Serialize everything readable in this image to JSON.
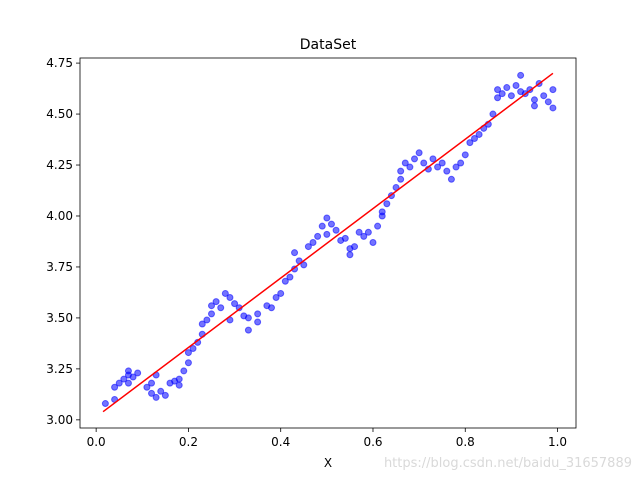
{
  "chart_data": {
    "type": "scatter",
    "title": "DataSet",
    "xlabel": "X",
    "ylabel": "",
    "xlim": [
      -0.035,
      1.04
    ],
    "ylim": [
      2.96,
      4.775
    ],
    "xticks": [
      0.0,
      0.2,
      0.4,
      0.6,
      0.8,
      1.0
    ],
    "xtick_labels": [
      "0.0",
      "0.2",
      "0.4",
      "0.6",
      "0.8",
      "1.0"
    ],
    "yticks": [
      3.0,
      3.25,
      3.5,
      3.75,
      4.0,
      4.25,
      4.5,
      4.75
    ],
    "ytick_labels": [
      "3.00",
      "3.25",
      "3.50",
      "3.75",
      "4.00",
      "4.25",
      "4.50",
      "4.75"
    ],
    "grid": false,
    "legend": "none",
    "series": [
      {
        "kind": "scatter",
        "color": "#0000ff",
        "opacity": 0.55,
        "points": [
          [
            0.02,
            3.08
          ],
          [
            0.04,
            3.16
          ],
          [
            0.04,
            3.1
          ],
          [
            0.05,
            3.18
          ],
          [
            0.06,
            3.2
          ],
          [
            0.07,
            3.22
          ],
          [
            0.07,
            3.18
          ],
          [
            0.08,
            3.21
          ],
          [
            0.09,
            3.23
          ],
          [
            0.07,
            3.24
          ],
          [
            0.11,
            3.16
          ],
          [
            0.12,
            3.13
          ],
          [
            0.12,
            3.18
          ],
          [
            0.13,
            3.22
          ],
          [
            0.13,
            3.11
          ],
          [
            0.14,
            3.14
          ],
          [
            0.15,
            3.12
          ],
          [
            0.16,
            3.18
          ],
          [
            0.17,
            3.19
          ],
          [
            0.18,
            3.17
          ],
          [
            0.18,
            3.2
          ],
          [
            0.19,
            3.24
          ],
          [
            0.2,
            3.28
          ],
          [
            0.2,
            3.33
          ],
          [
            0.21,
            3.35
          ],
          [
            0.22,
            3.38
          ],
          [
            0.23,
            3.42
          ],
          [
            0.23,
            3.47
          ],
          [
            0.24,
            3.49
          ],
          [
            0.25,
            3.52
          ],
          [
            0.25,
            3.56
          ],
          [
            0.26,
            3.58
          ],
          [
            0.27,
            3.55
          ],
          [
            0.28,
            3.62
          ],
          [
            0.29,
            3.6
          ],
          [
            0.29,
            3.49
          ],
          [
            0.3,
            3.57
          ],
          [
            0.31,
            3.55
          ],
          [
            0.32,
            3.51
          ],
          [
            0.33,
            3.44
          ],
          [
            0.33,
            3.5
          ],
          [
            0.35,
            3.52
          ],
          [
            0.35,
            3.48
          ],
          [
            0.37,
            3.56
          ],
          [
            0.38,
            3.55
          ],
          [
            0.39,
            3.6
          ],
          [
            0.4,
            3.62
          ],
          [
            0.41,
            3.68
          ],
          [
            0.42,
            3.7
          ],
          [
            0.43,
            3.74
          ],
          [
            0.43,
            3.82
          ],
          [
            0.44,
            3.78
          ],
          [
            0.45,
            3.76
          ],
          [
            0.46,
            3.85
          ],
          [
            0.47,
            3.87
          ],
          [
            0.48,
            3.9
          ],
          [
            0.49,
            3.95
          ],
          [
            0.5,
            3.99
          ],
          [
            0.5,
            3.91
          ],
          [
            0.51,
            3.96
          ],
          [
            0.52,
            3.93
          ],
          [
            0.53,
            3.88
          ],
          [
            0.54,
            3.89
          ],
          [
            0.55,
            3.84
          ],
          [
            0.55,
            3.81
          ],
          [
            0.56,
            3.85
          ],
          [
            0.57,
            3.92
          ],
          [
            0.58,
            3.9
          ],
          [
            0.59,
            3.92
          ],
          [
            0.6,
            3.87
          ],
          [
            0.61,
            3.95
          ],
          [
            0.62,
            4.0
          ],
          [
            0.62,
            4.02
          ],
          [
            0.63,
            4.06
          ],
          [
            0.64,
            4.1
          ],
          [
            0.65,
            4.14
          ],
          [
            0.66,
            4.18
          ],
          [
            0.66,
            4.22
          ],
          [
            0.67,
            4.26
          ],
          [
            0.68,
            4.24
          ],
          [
            0.69,
            4.28
          ],
          [
            0.7,
            4.31
          ],
          [
            0.71,
            4.26
          ],
          [
            0.72,
            4.23
          ],
          [
            0.73,
            4.28
          ],
          [
            0.74,
            4.24
          ],
          [
            0.75,
            4.26
          ],
          [
            0.76,
            4.22
          ],
          [
            0.77,
            4.18
          ],
          [
            0.78,
            4.24
          ],
          [
            0.79,
            4.26
          ],
          [
            0.8,
            4.3
          ],
          [
            0.81,
            4.36
          ],
          [
            0.82,
            4.38
          ],
          [
            0.83,
            4.4
          ],
          [
            0.84,
            4.43
          ],
          [
            0.85,
            4.45
          ],
          [
            0.86,
            4.5
          ],
          [
            0.87,
            4.58
          ],
          [
            0.87,
            4.62
          ],
          [
            0.88,
            4.6
          ],
          [
            0.89,
            4.63
          ],
          [
            0.9,
            4.59
          ],
          [
            0.91,
            4.64
          ],
          [
            0.92,
            4.69
          ],
          [
            0.92,
            4.61
          ],
          [
            0.93,
            4.6
          ],
          [
            0.94,
            4.62
          ],
          [
            0.95,
            4.57
          ],
          [
            0.95,
            4.54
          ],
          [
            0.96,
            4.65
          ],
          [
            0.97,
            4.59
          ],
          [
            0.98,
            4.56
          ],
          [
            0.99,
            4.62
          ],
          [
            0.99,
            4.53
          ]
        ]
      },
      {
        "kind": "line",
        "color": "#ff0000",
        "points": [
          [
            0.015,
            3.04
          ],
          [
            0.99,
            4.7
          ]
        ]
      }
    ]
  },
  "watermark": "https://blog.csdn.net/baidu_31657889"
}
